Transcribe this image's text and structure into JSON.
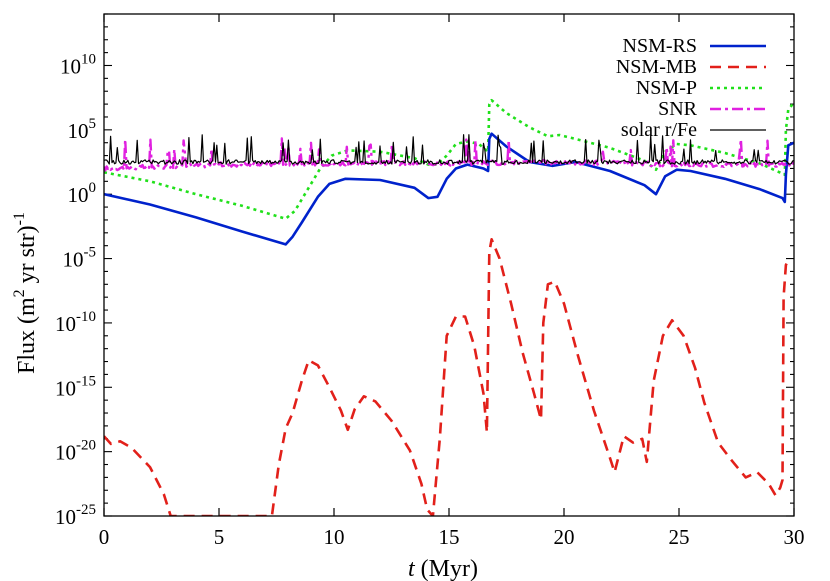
{
  "chart_data": {
    "type": "line",
    "title": "",
    "xlabel_italic": "t",
    "xlabel_rest": " (Myr)",
    "ylabel_main": "Flux (m",
    "ylabel_sup2": "2",
    "ylabel_mid": " yr str)",
    "ylabel_supexp": "-1",
    "xlim": [
      0,
      30
    ],
    "ylim_log10": [
      -25,
      14
    ],
    "y_scale": "log",
    "grid": false,
    "legend_position": "top-right",
    "x_ticks": [
      "0",
      "5",
      "10",
      "15",
      "20",
      "25",
      "30"
    ],
    "x_tick_values": [
      0,
      5,
      10,
      15,
      20,
      25,
      30
    ],
    "y_ticks": [
      {
        "base": "10",
        "exp": "-25",
        "log": -25
      },
      {
        "base": "10",
        "exp": "-20",
        "log": -20
      },
      {
        "base": "10",
        "exp": "-15",
        "log": -15
      },
      {
        "base": "10",
        "exp": "-10",
        "log": -10
      },
      {
        "base": "10",
        "exp": "-5",
        "log": -5
      },
      {
        "base": "10",
        "exp": "0",
        "log": 0
      },
      {
        "base": "10",
        "exp": "5",
        "log": 5
      },
      {
        "base": "10",
        "exp": "10",
        "log": 10
      }
    ],
    "series": [
      {
        "name": "NSM-RS",
        "color": "#0022cc",
        "style": "solid",
        "width": 2.6,
        "x": [
          0.0,
          2.0,
          4.0,
          6.0,
          7.9,
          8.2,
          8.6,
          9.3,
          9.8,
          10.5,
          12.0,
          13.5,
          14.1,
          14.5,
          14.9,
          15.3,
          15.8,
          16.5,
          16.7,
          16.75,
          16.85,
          17.5,
          18.5,
          19.5,
          20.5,
          22.0,
          23.5,
          24.0,
          24.4,
          24.9,
          25.5,
          27.0,
          28.5,
          29.5,
          29.6,
          29.65,
          29.75,
          30.0
        ],
        "y_log10": [
          0.0,
          -0.8,
          -1.8,
          -2.9,
          -3.9,
          -3.3,
          -2.2,
          -0.2,
          0.8,
          1.2,
          1.1,
          0.5,
          -0.3,
          -0.2,
          1.2,
          2.0,
          2.3,
          2.0,
          1.8,
          4.3,
          4.7,
          3.7,
          2.5,
          2.2,
          2.5,
          1.8,
          0.7,
          0.0,
          1.4,
          1.9,
          1.8,
          1.2,
          0.4,
          -0.3,
          -0.6,
          1.5,
          3.8,
          4.0
        ]
      },
      {
        "name": "NSM-MB",
        "color": "#e2201a",
        "style": "dashed",
        "width": 2.6,
        "x": [
          0.0,
          0.3,
          0.7,
          1.2,
          2.0,
          2.6,
          2.9,
          7.3,
          7.6,
          7.9,
          8.2,
          8.6,
          8.9,
          9.3,
          9.8,
          10.3,
          10.6,
          10.9,
          11.3,
          11.8,
          12.5,
          13.3,
          13.8,
          14.05,
          14.3,
          14.6,
          14.9,
          15.3,
          15.7,
          16.1,
          16.5,
          16.65,
          16.75,
          16.85,
          17.2,
          17.7,
          18.2,
          18.7,
          19.0,
          19.1,
          19.3,
          19.6,
          20.0,
          20.6,
          21.3,
          22.0,
          22.2,
          22.6,
          23.0,
          23.4,
          23.6,
          23.9,
          24.3,
          24.7,
          25.2,
          25.7,
          26.1,
          26.7,
          27.3,
          27.9,
          28.4,
          28.9,
          29.2,
          29.4,
          29.5,
          29.55,
          29.65,
          29.8
        ],
        "y_log10": [
          -18.8,
          -19.4,
          -19.2,
          -19.7,
          -21.2,
          -23.3,
          -25.0,
          -25.0,
          -21.0,
          -18.2,
          -17.0,
          -14.5,
          -12.9,
          -13.3,
          -15.0,
          -16.8,
          -18.3,
          -16.7,
          -15.7,
          -16.1,
          -17.6,
          -19.9,
          -22.5,
          -24.5,
          -25.0,
          -19.0,
          -11.0,
          -9.5,
          -9.5,
          -11.8,
          -15.5,
          -18.5,
          -4.5,
          -3.5,
          -5.0,
          -8.5,
          -12.3,
          -15.5,
          -17.5,
          -10.0,
          -7.0,
          -6.8,
          -8.5,
          -12.5,
          -16.8,
          -20.5,
          -21.6,
          -18.8,
          -19.3,
          -19.0,
          -20.8,
          -14.5,
          -11.0,
          -9.8,
          -11.0,
          -13.5,
          -16.2,
          -19.3,
          -20.7,
          -22.0,
          -21.6,
          -22.5,
          -23.4,
          -22.8,
          -22.2,
          -8.0,
          -5.5,
          -5.0
        ]
      },
      {
        "name": "NSM-P",
        "color": "#21e01b",
        "style": "dotted",
        "width": 2.6,
        "x": [
          0.0,
          2.0,
          4.0,
          6.0,
          7.9,
          8.3,
          8.8,
          9.4,
          9.9,
          10.6,
          12.0,
          13.5,
          14.1,
          14.5,
          14.9,
          15.3,
          15.8,
          16.3,
          16.7,
          16.75,
          16.85,
          17.5,
          18.5,
          19.3,
          19.8,
          20.5,
          22.0,
          23.5,
          24.0,
          24.4,
          24.9,
          25.5,
          27.0,
          28.5,
          29.5,
          29.6,
          29.65,
          29.75,
          30.0
        ],
        "y_log10": [
          1.7,
          1.0,
          0.0,
          -0.9,
          -1.9,
          -1.3,
          0.2,
          2.0,
          3.0,
          3.4,
          3.3,
          2.8,
          2.3,
          2.3,
          3.0,
          3.9,
          4.1,
          3.9,
          3.3,
          7.0,
          7.3,
          6.3,
          5.2,
          4.5,
          4.6,
          4.3,
          3.6,
          2.6,
          1.9,
          3.3,
          3.9,
          3.8,
          3.2,
          2.4,
          1.6,
          1.5,
          5.0,
          6.6,
          7.1
        ]
      },
      {
        "name": "SNR",
        "color": "#e020e0",
        "style": "dashdot",
        "width": 2.4,
        "x": [
          0.0,
          5.0,
          10.0,
          15.0,
          20.0,
          25.0,
          30.0
        ],
        "y_log10": [
          2.0,
          2.3,
          2.4,
          2.4,
          2.5,
          2.3,
          2.3
        ]
      },
      {
        "name": "solar r/Fe",
        "color": "#000000",
        "style": "solid",
        "width": 1.2,
        "x": [
          0.0,
          30.0
        ],
        "y_log10": [
          2.5,
          2.5
        ]
      }
    ]
  }
}
